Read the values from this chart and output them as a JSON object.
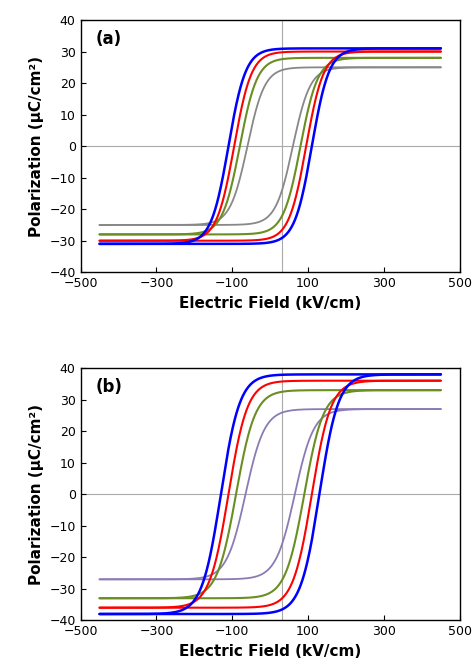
{
  "panel_a": {
    "label": "(a)",
    "ylim": [
      -40,
      40
    ],
    "xlim": [
      -500,
      500
    ],
    "yticks": [
      -40,
      -30,
      -20,
      -10,
      0,
      10,
      20,
      30,
      40
    ],
    "xticks": [
      -500,
      -300,
      -100,
      100,
      300,
      500
    ],
    "vline_x": 30,
    "curves": [
      {
        "color": "#0000FF",
        "lw": 1.8,
        "Ec": 110,
        "Psat": 31,
        "Pr": 19,
        "k": 0.022
      },
      {
        "color": "#FF0000",
        "lw": 1.5,
        "Ec": 95,
        "Psat": 30,
        "Pr": 17,
        "k": 0.022
      },
      {
        "color": "#6B8E23",
        "lw": 1.5,
        "Ec": 80,
        "Psat": 28,
        "Pr": 15,
        "k": 0.022
      },
      {
        "color": "#888888",
        "lw": 1.3,
        "Ec": 60,
        "Psat": 25,
        "Pr": 12,
        "k": 0.022
      }
    ]
  },
  "panel_b": {
    "label": "(b)",
    "ylim": [
      -40,
      40
    ],
    "xlim": [
      -500,
      500
    ],
    "yticks": [
      -40,
      -30,
      -20,
      -10,
      0,
      10,
      20,
      30,
      40
    ],
    "xticks": [
      -500,
      -300,
      -100,
      100,
      300,
      500
    ],
    "vline_x": 30,
    "curves": [
      {
        "color": "#0000FF",
        "lw": 1.8,
        "Ec": 130,
        "Psat": 38,
        "Pr": 22,
        "k": 0.02
      },
      {
        "color": "#FF0000",
        "lw": 1.5,
        "Ec": 110,
        "Psat": 36,
        "Pr": 20,
        "k": 0.02
      },
      {
        "color": "#6B8E23",
        "lw": 1.5,
        "Ec": 90,
        "Psat": 33,
        "Pr": 17,
        "k": 0.02
      },
      {
        "color": "#8B7BB5",
        "lw": 1.3,
        "Ec": 65,
        "Psat": 27,
        "Pr": 12,
        "k": 0.02
      }
    ]
  },
  "xlabel": "Electric Field (kV/cm)",
  "ylabel": "Polarization (μC/cm²)",
  "bg_color": "#FFFFFF",
  "grid_color": "#AAAAAA",
  "label_fontsize": 11,
  "tick_fontsize": 9,
  "panel_label_fontsize": 12
}
